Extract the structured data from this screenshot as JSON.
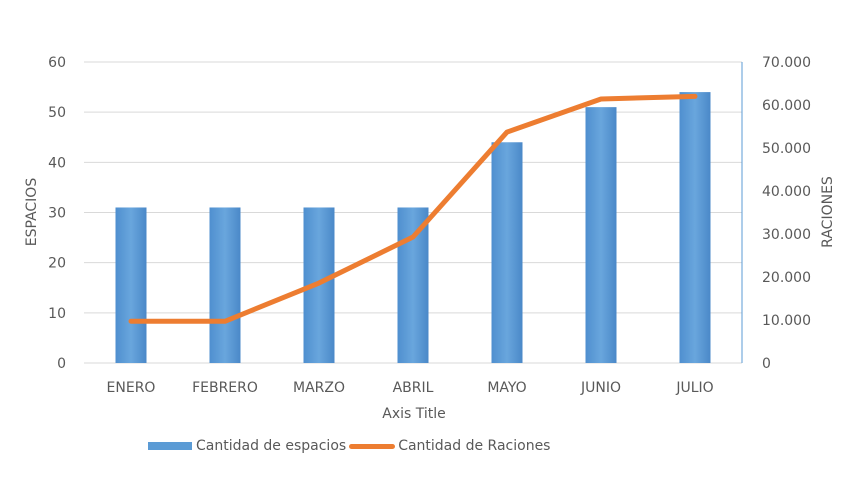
{
  "chart_data": {
    "type": "bar+line",
    "title": "",
    "categories": [
      "ENERO",
      "FEBRERO",
      "MARZO",
      "ABRIL",
      "MAYO",
      "JUNIO",
      "JULIO"
    ],
    "series": [
      {
        "name": "Cantidad de espacios",
        "type": "bar",
        "axis": "left",
        "color": "#5b9bd5",
        "values": [
          31,
          31,
          31,
          31,
          44,
          51,
          54
        ]
      },
      {
        "name": "Cantidad de Raciones",
        "type": "line",
        "axis": "right",
        "color": "#ed7d31",
        "values": [
          9700,
          9700,
          18600,
          29300,
          53700,
          61400,
          62000
        ]
      }
    ],
    "xlabel": "Axis Title",
    "ylabel": "ESPACIOS",
    "y2label": "RACIONES",
    "ylim": [
      0,
      60
    ],
    "y2lim": [
      0,
      70000
    ],
    "yticks": [
      "0",
      "10",
      "20",
      "30",
      "40",
      "50",
      "60"
    ],
    "y2ticks": [
      "0",
      "10.000",
      "20.000",
      "30.000",
      "40.000",
      "50.000",
      "60.000",
      "70.000"
    ],
    "grid": true,
    "legend_position": "bottom-left"
  },
  "legend": {
    "bar_label": "Cantidad de espacios",
    "line_label": "Cantidad de Raciones"
  },
  "colors": {
    "bar": "#5b9bd5",
    "line": "#ed7d31",
    "grid": "#d9d9d9",
    "right_axis": "#5b9bd5"
  }
}
